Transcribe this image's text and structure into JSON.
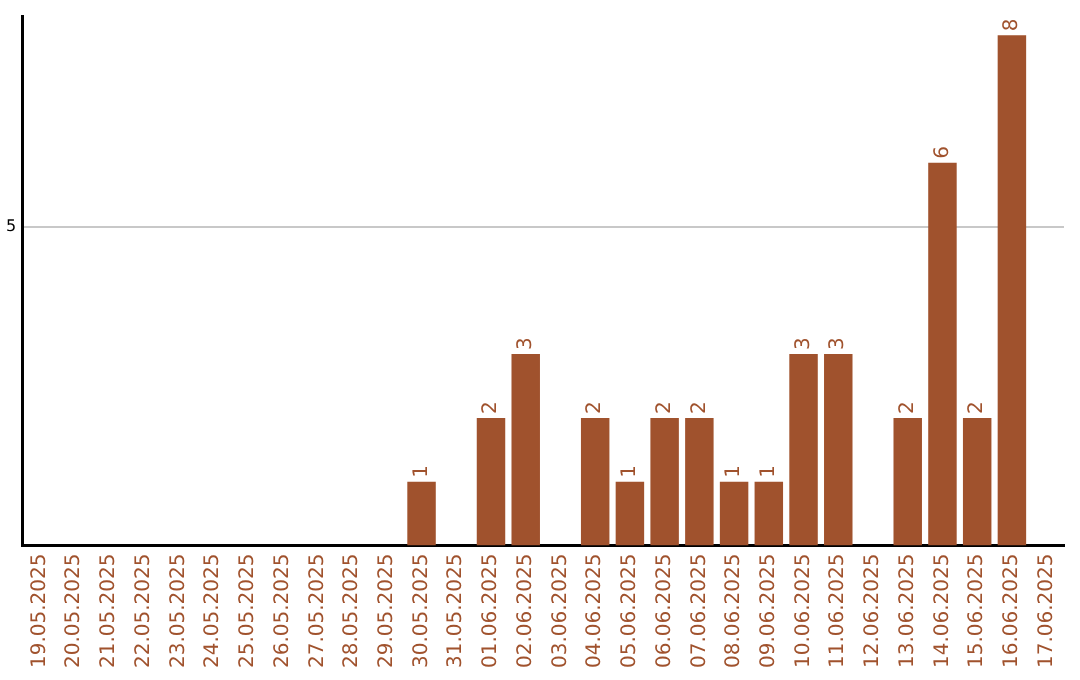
{
  "chart_data": {
    "type": "bar",
    "categories": [
      "19.05.2025",
      "20.05.2025",
      "21.05.2025",
      "22.05.2025",
      "23.05.2025",
      "24.05.2025",
      "25.05.2025",
      "26.05.2025",
      "27.05.2025",
      "28.05.2025",
      "29.05.2025",
      "30.05.2025",
      "31.05.2025",
      "01.06.2025",
      "02.06.2025",
      "03.06.2025",
      "04.06.2025",
      "05.06.2025",
      "06.06.2025",
      "07.06.2025",
      "08.06.2025",
      "09.06.2025",
      "10.06.2025",
      "11.06.2025",
      "12.06.2025",
      "13.06.2025",
      "14.06.2025",
      "15.06.2025",
      "16.06.2025",
      "17.06.2025"
    ],
    "values": [
      0,
      0,
      0,
      0,
      0,
      0,
      0,
      0,
      0,
      0,
      0,
      1,
      0,
      2,
      3,
      0,
      2,
      1,
      2,
      2,
      1,
      1,
      3,
      3,
      0,
      2,
      6,
      2,
      8,
      0
    ],
    "value_labels": [
      null,
      null,
      null,
      null,
      null,
      null,
      null,
      null,
      null,
      null,
      null,
      "1",
      null,
      "2",
      "3",
      null,
      "2",
      "1",
      "2",
      "2",
      "1",
      "1",
      "3",
      "3",
      null,
      "2",
      "6",
      "2",
      "8",
      null
    ],
    "color": "#a0522d",
    "ylim": [
      0,
      8.3
    ],
    "yticks": [
      5
    ],
    "grid": "y",
    "legend": false
  }
}
